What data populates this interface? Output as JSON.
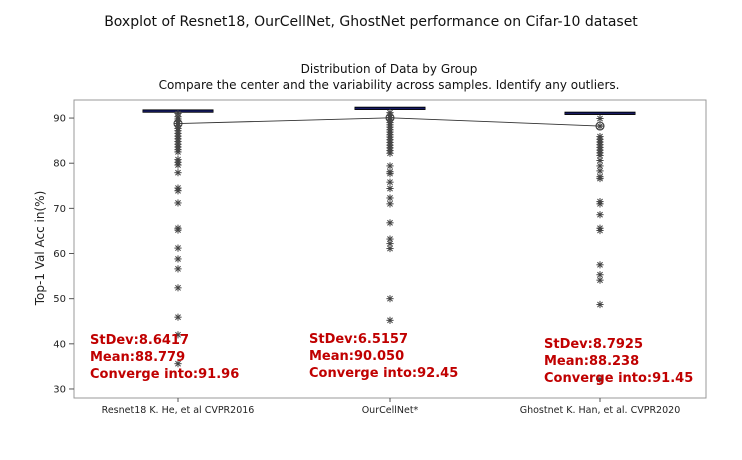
{
  "figure": {
    "title": "Boxplot of Resnet18, OurCellNet, GhostNet performance on Cifar-10 dataset",
    "subtitle_line1": "Distribution of Data by Group",
    "subtitle_line2": "Compare the center and the variability across samples. Identify any outliers."
  },
  "chart_data": {
    "type": "boxplot",
    "title": "Boxplot of Resnet18, OurCellNet, GhostNet performance on Cifar-10 dataset",
    "subtitle": "Distribution of Data by Group",
    "ylabel": "Top-1 Val Acc in(%)",
    "xlabel": "",
    "ylim": [
      28,
      94
    ],
    "yticks": [
      30,
      40,
      50,
      60,
      70,
      80,
      90
    ],
    "grid": false,
    "categories": [
      "Resnet18 K. He, et al CVPR2016",
      "OurCellNet*",
      "Ghostnet K. Han, et al. CVPR2020"
    ],
    "mean_line_values": [
      88.779,
      90.05,
      88.238
    ],
    "series": [
      {
        "category": "Resnet18 K. He, et al CVPR2016",
        "box": {
          "q1": 91.3,
          "median": 91.5,
          "q3": 91.8
        },
        "mean": 88.779,
        "outliers": [
          91.0,
          90.3,
          89.8,
          89.3,
          88.8,
          88.3,
          87.7,
          87.2,
          86.6,
          86.0,
          85.4,
          84.8,
          84.2,
          83.6,
          83.0,
          82.5,
          80.8,
          80.2,
          79.6,
          77.9,
          74.5,
          73.9,
          71.2,
          65.6,
          65.2,
          61.2,
          58.8,
          56.6,
          52.4,
          45.9,
          42.0,
          35.6
        ],
        "stats": {
          "stdev": "StDev:8.6417",
          "mean": "Mean:88.779",
          "converge": "Converge into:91.96"
        }
      },
      {
        "category": "OurCellNet*",
        "box": {
          "q1": 91.9,
          "median": 92.1,
          "q3": 92.4
        },
        "mean": 90.05,
        "outliers": [
          91.2,
          90.6,
          90.1,
          89.6,
          89.0,
          88.5,
          88.0,
          87.4,
          86.9,
          86.3,
          85.8,
          85.2,
          84.6,
          84.0,
          83.4,
          82.8,
          82.2,
          79.4,
          78.1,
          77.7,
          75.8,
          74.4,
          72.3,
          71.0,
          66.8,
          63.2,
          62.2,
          61.1,
          50.0,
          45.2
        ],
        "stats": {
          "stdev": "StDev:6.5157",
          "mean": "Mean:90.050",
          "converge": "Converge into:92.45"
        }
      },
      {
        "category": "Ghostnet K. Han, et al. CVPR2020",
        "box": {
          "q1": 90.8,
          "median": 91.0,
          "q3": 91.3
        },
        "mean": 88.238,
        "outliers": [
          89.9,
          88.2,
          85.9,
          85.3,
          84.7,
          84.1,
          83.5,
          82.9,
          82.3,
          81.7,
          80.6,
          79.4,
          78.3,
          77.0,
          76.6,
          71.5,
          71.0,
          68.6,
          65.6,
          65.1,
          57.5,
          55.3,
          54.1,
          48.7,
          32.1
        ],
        "stats": {
          "stdev": "StDev:8.7925",
          "mean": "Mean:88.238",
          "converge": "Converge into:91.45"
        }
      }
    ]
  }
}
